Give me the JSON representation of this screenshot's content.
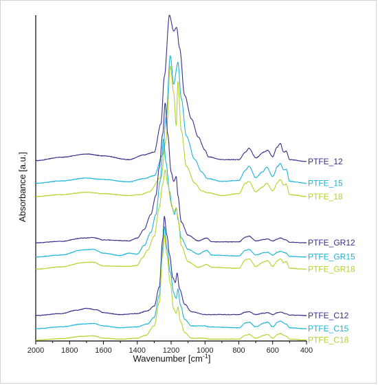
{
  "chart_data": {
    "type": "line",
    "title": "",
    "xlabel_main": "Wavenumber [cm",
    "xlabel_sup": "-1",
    "xlabel_tail": "]",
    "ylabel": "Absorbance [a.u.]",
    "xlim": [
      2000,
      400
    ],
    "x_reversed": true,
    "x_ticks": [
      2000,
      1800,
      1600,
      1400,
      1200,
      1000,
      800,
      600,
      400
    ],
    "grid": false,
    "legend": "series labels placed at right end of each curve",
    "colors": {
      "dark": "#3b2a8c",
      "cyan": "#1ab3d9",
      "lime": "#b5d12a"
    },
    "series": [
      {
        "name": "PTFE_12",
        "color": "#3b2a8c",
        "baseline": 19.0,
        "shape": "ptfe",
        "peak_scale": 15.5,
        "points": [
          [
            2000,
            0.1
          ],
          [
            1850,
            0.45
          ],
          [
            1700,
            0.8
          ],
          [
            1600,
            0.6
          ],
          [
            1450,
            0.2
          ],
          [
            1360,
            0.7
          ],
          [
            1300,
            1.0
          ],
          [
            1260,
            4
          ],
          [
            1240,
            9
          ],
          [
            1210,
            15.5
          ],
          [
            1185,
            13.8
          ],
          [
            1168,
            14.2
          ],
          [
            1150,
            12
          ],
          [
            1120,
            7
          ],
          [
            1080,
            4.5
          ],
          [
            1040,
            2.6
          ],
          [
            1000,
            1.2
          ],
          [
            980,
            0.5
          ],
          [
            900,
            0.2
          ],
          [
            800,
            0.2
          ],
          [
            760,
            1.0
          ],
          [
            740,
            1.4
          ],
          [
            700,
            0.4
          ],
          [
            650,
            1.0
          ],
          [
            630,
            1.2
          ],
          [
            600,
            0.5
          ],
          [
            575,
            1.5
          ],
          [
            555,
            1.9
          ],
          [
            535,
            1.0
          ],
          [
            520,
            1.1
          ],
          [
            500,
            0.2
          ],
          [
            400,
            0.0
          ]
        ]
      },
      {
        "name": "PTFE_15",
        "color": "#1ab3d9",
        "baseline": 16.7,
        "shape": "ptfe",
        "points": [
          [
            2000,
            0.0
          ],
          [
            1850,
            0.25
          ],
          [
            1700,
            0.55
          ],
          [
            1600,
            0.4
          ],
          [
            1450,
            0.15
          ],
          [
            1360,
            0.5
          ],
          [
            1300,
            0.8
          ],
          [
            1250,
            3
          ],
          [
            1230,
            7
          ],
          [
            1205,
            13.5
          ],
          [
            1185,
            10.5
          ],
          [
            1160,
            12.8
          ],
          [
            1140,
            9
          ],
          [
            1110,
            5
          ],
          [
            1060,
            2.5
          ],
          [
            1020,
            1.2
          ],
          [
            985,
            0.5
          ],
          [
            900,
            0.2
          ],
          [
            800,
            0.3
          ],
          [
            760,
            1.4
          ],
          [
            740,
            1.8
          ],
          [
            700,
            0.6
          ],
          [
            660,
            1.2
          ],
          [
            635,
            1.7
          ],
          [
            600,
            0.7
          ],
          [
            570,
            1.8
          ],
          [
            555,
            2.1
          ],
          [
            535,
            1.4
          ],
          [
            520,
            1.5
          ],
          [
            500,
            0.2
          ],
          [
            400,
            0.0
          ]
        ]
      },
      {
        "name": "PTFE_18",
        "color": "#b5d12a",
        "baseline": 15.3,
        "shape": "ptfe",
        "points": [
          [
            2000,
            0.0
          ],
          [
            1850,
            0.2
          ],
          [
            1700,
            0.45
          ],
          [
            1600,
            0.3
          ],
          [
            1450,
            0.1
          ],
          [
            1380,
            0.2
          ],
          [
            1330,
            0.5
          ],
          [
            1260,
            2
          ],
          [
            1230,
            6
          ],
          [
            1205,
            13.8
          ],
          [
            1185,
            11
          ],
          [
            1170,
            7.5
          ],
          [
            1160,
            12.2
          ],
          [
            1140,
            7
          ],
          [
            1110,
            3.2
          ],
          [
            1060,
            1.4
          ],
          [
            1020,
            0.6
          ],
          [
            985,
            0.4
          ],
          [
            900,
            0.1
          ],
          [
            800,
            0.3
          ],
          [
            760,
            1.4
          ],
          [
            740,
            1.6
          ],
          [
            700,
            0.5
          ],
          [
            660,
            1.0
          ],
          [
            635,
            1.4
          ],
          [
            600,
            0.6
          ],
          [
            570,
            1.5
          ],
          [
            555,
            1.8
          ],
          [
            535,
            1.2
          ],
          [
            520,
            1.3
          ],
          [
            500,
            0.2
          ],
          [
            400,
            0.0
          ]
        ]
      },
      {
        "name": "PTFE_GR12",
        "color": "#3b2a8c",
        "baseline": 10.4,
        "points": [
          [
            2000,
            0.0
          ],
          [
            1850,
            0.15
          ],
          [
            1720,
            0.5
          ],
          [
            1660,
            0.55
          ],
          [
            1600,
            0.3
          ],
          [
            1450,
            0.2
          ],
          [
            1400,
            0.5
          ],
          [
            1360,
            1.4
          ],
          [
            1320,
            3
          ],
          [
            1290,
            5
          ],
          [
            1270,
            8
          ],
          [
            1250,
            11.5
          ],
          [
            1235,
            14.8
          ],
          [
            1220,
            11.5
          ],
          [
            1200,
            7.5
          ],
          [
            1185,
            6.5
          ],
          [
            1170,
            7
          ],
          [
            1160,
            5
          ],
          [
            1140,
            2.2
          ],
          [
            1100,
            0.8
          ],
          [
            1040,
            0.2
          ],
          [
            990,
            0.5
          ],
          [
            960,
            0.1
          ],
          [
            800,
            0.1
          ],
          [
            760,
            0.6
          ],
          [
            740,
            0.7
          ],
          [
            700,
            0.2
          ],
          [
            650,
            0.35
          ],
          [
            630,
            0.4
          ],
          [
            600,
            0.2
          ],
          [
            570,
            0.4
          ],
          [
            555,
            0.5
          ],
          [
            520,
            0.3
          ],
          [
            500,
            0.05
          ],
          [
            400,
            0.0
          ]
        ]
      },
      {
        "name": "PTFE_GR15",
        "color": "#1ab3d9",
        "baseline": 8.9,
        "points": [
          [
            2000,
            0.0
          ],
          [
            1850,
            0.2
          ],
          [
            1720,
            0.75
          ],
          [
            1660,
            0.8
          ],
          [
            1600,
            0.4
          ],
          [
            1500,
            0.15
          ],
          [
            1450,
            0.4
          ],
          [
            1400,
            0.3
          ],
          [
            1360,
            1.2
          ],
          [
            1320,
            2.6
          ],
          [
            1290,
            4.5
          ],
          [
            1265,
            8
          ],
          [
            1245,
            12.5
          ],
          [
            1230,
            10
          ],
          [
            1210,
            7
          ],
          [
            1195,
            5.3
          ],
          [
            1180,
            4.5
          ],
          [
            1170,
            5.2
          ],
          [
            1160,
            4
          ],
          [
            1140,
            2
          ],
          [
            1100,
            0.8
          ],
          [
            1040,
            0.3
          ],
          [
            990,
            0.7
          ],
          [
            960,
            0.2
          ],
          [
            800,
            0.1
          ],
          [
            760,
            0.7
          ],
          [
            740,
            0.8
          ],
          [
            700,
            0.2
          ],
          [
            650,
            0.45
          ],
          [
            630,
            0.5
          ],
          [
            600,
            0.2
          ],
          [
            570,
            0.5
          ],
          [
            555,
            0.6
          ],
          [
            520,
            0.4
          ],
          [
            500,
            0.05
          ],
          [
            400,
            0.0
          ]
        ]
      },
      {
        "name": "PTFE_GR18",
        "color": "#b5d12a",
        "baseline": 7.6,
        "points": [
          [
            2000,
            0.0
          ],
          [
            1850,
            0.25
          ],
          [
            1720,
            0.7
          ],
          [
            1660,
            0.75
          ],
          [
            1600,
            0.35
          ],
          [
            1450,
            0.3
          ],
          [
            1400,
            0.4
          ],
          [
            1370,
            1.2
          ],
          [
            1340,
            2.0
          ],
          [
            1300,
            3.5
          ],
          [
            1270,
            6.5
          ],
          [
            1250,
            9
          ],
          [
            1235,
            10.5
          ],
          [
            1220,
            9
          ],
          [
            1200,
            7
          ],
          [
            1185,
            6
          ],
          [
            1170,
            6.5
          ],
          [
            1160,
            5.5
          ],
          [
            1140,
            2.5
          ],
          [
            1100,
            0.8
          ],
          [
            1040,
            0.2
          ],
          [
            990,
            0.5
          ],
          [
            960,
            0.2
          ],
          [
            800,
            0.1
          ],
          [
            760,
            1.0
          ],
          [
            740,
            1.1
          ],
          [
            700,
            0.3
          ],
          [
            650,
            0.8
          ],
          [
            630,
            0.9
          ],
          [
            600,
            0.3
          ],
          [
            570,
            0.9
          ],
          [
            555,
            1.1
          ],
          [
            535,
            0.7
          ],
          [
            520,
            0.8
          ],
          [
            500,
            0.1
          ],
          [
            400,
            0.0
          ]
        ]
      },
      {
        "name": "PTFE_C12",
        "color": "#3b2a8c",
        "baseline": 2.7,
        "points": [
          [
            2000,
            0.0
          ],
          [
            1850,
            0.2
          ],
          [
            1760,
            0.55
          ],
          [
            1700,
            0.75
          ],
          [
            1640,
            0.6
          ],
          [
            1600,
            0.3
          ],
          [
            1500,
            0.1
          ],
          [
            1400,
            0.2
          ],
          [
            1340,
            0.5
          ],
          [
            1300,
            1.0
          ],
          [
            1270,
            3
          ],
          [
            1250,
            8
          ],
          [
            1240,
            10.5
          ],
          [
            1225,
            8.5
          ],
          [
            1210,
            6.5
          ],
          [
            1190,
            4
          ],
          [
            1175,
            3.5
          ],
          [
            1165,
            4.5
          ],
          [
            1150,
            2.8
          ],
          [
            1120,
            1.2
          ],
          [
            1080,
            0.4
          ],
          [
            1000,
            0.1
          ],
          [
            800,
            0.1
          ],
          [
            760,
            0.35
          ],
          [
            740,
            0.4
          ],
          [
            700,
            0.1
          ],
          [
            650,
            0.25
          ],
          [
            630,
            0.3
          ],
          [
            600,
            0.1
          ],
          [
            570,
            0.3
          ],
          [
            555,
            0.35
          ],
          [
            520,
            0.2
          ],
          [
            500,
            0.05
          ],
          [
            400,
            0.0
          ]
        ]
      },
      {
        "name": "PTFE_C15",
        "color": "#1ab3d9",
        "baseline": 1.3,
        "points": [
          [
            2000,
            0.0
          ],
          [
            1850,
            0.2
          ],
          [
            1720,
            0.5
          ],
          [
            1660,
            0.55
          ],
          [
            1600,
            0.3
          ],
          [
            1500,
            0.1
          ],
          [
            1400,
            0.2
          ],
          [
            1340,
            0.5
          ],
          [
            1300,
            1.2
          ],
          [
            1270,
            3.5
          ],
          [
            1250,
            8.5
          ],
          [
            1240,
            10.8
          ],
          [
            1225,
            8.5
          ],
          [
            1205,
            6
          ],
          [
            1185,
            3.8
          ],
          [
            1170,
            3.2
          ],
          [
            1160,
            4.2
          ],
          [
            1145,
            2.5
          ],
          [
            1120,
            1.0
          ],
          [
            1080,
            0.3
          ],
          [
            1000,
            0.3
          ],
          [
            980,
            0.2
          ],
          [
            800,
            0.1
          ],
          [
            760,
            0.6
          ],
          [
            740,
            0.7
          ],
          [
            700,
            0.2
          ],
          [
            650,
            0.6
          ],
          [
            630,
            0.7
          ],
          [
            600,
            0.2
          ],
          [
            570,
            0.7
          ],
          [
            555,
            0.8
          ],
          [
            520,
            0.5
          ],
          [
            500,
            0.1
          ],
          [
            400,
            0.0
          ]
        ]
      },
      {
        "name": "PTFE_C18",
        "color": "#b5d12a",
        "baseline": 0.1,
        "points": [
          [
            2000,
            0.0
          ],
          [
            1850,
            0.15
          ],
          [
            1720,
            0.4
          ],
          [
            1660,
            0.45
          ],
          [
            1600,
            0.2
          ],
          [
            1500,
            0.1
          ],
          [
            1400,
            0.2
          ],
          [
            1350,
            0.5
          ],
          [
            1300,
            1.5
          ],
          [
            1270,
            4
          ],
          [
            1250,
            9
          ],
          [
            1240,
            11.2
          ],
          [
            1225,
            9
          ],
          [
            1205,
            6
          ],
          [
            1185,
            3.3
          ],
          [
            1170,
            2.8
          ],
          [
            1160,
            3.5
          ],
          [
            1145,
            2
          ],
          [
            1120,
            0.8
          ],
          [
            1080,
            0.2
          ],
          [
            1000,
            0.2
          ],
          [
            980,
            0.1
          ],
          [
            800,
            0.1
          ],
          [
            760,
            0.5
          ],
          [
            740,
            0.6
          ],
          [
            700,
            0.2
          ],
          [
            650,
            0.5
          ],
          [
            630,
            0.6
          ],
          [
            600,
            0.2
          ],
          [
            570,
            0.6
          ],
          [
            555,
            0.7
          ],
          [
            520,
            0.4
          ],
          [
            500,
            0.1
          ],
          [
            400,
            0.0
          ]
        ]
      }
    ]
  }
}
